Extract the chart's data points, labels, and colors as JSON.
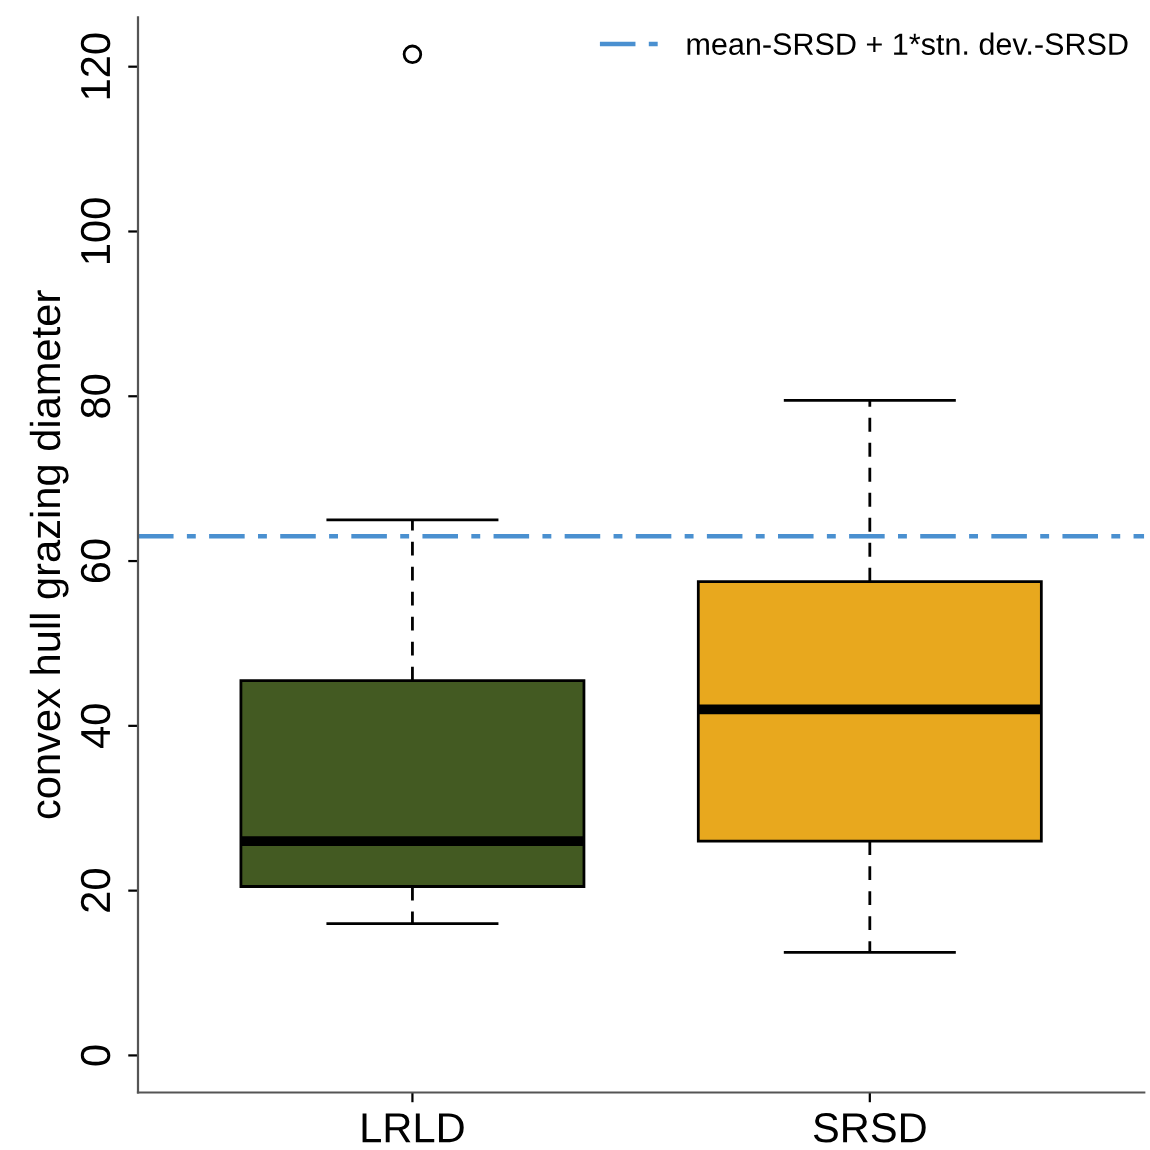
{
  "chart_data": {
    "type": "box",
    "ylabel": "convex hull grazing diameter",
    "categories": [
      "LRLD",
      "SRSD"
    ],
    "series": [
      {
        "colors": [
          "#435a22",
          "#e8a81e"
        ],
        "boxes": [
          {
            "low": 16,
            "q1": 20.5,
            "median": 26,
            "q3": 45.5,
            "high": 65,
            "outliers": [
              121.5
            ]
          },
          {
            "low": 12.5,
            "q1": 26,
            "median": 42,
            "q3": 57.5,
            "high": 79.5
          }
        ]
      }
    ],
    "ylim": [
      -4.5,
      126
    ],
    "yticks": [
      0,
      20,
      40,
      60,
      80,
      100,
      120
    ],
    "ref_lines": [
      {
        "axis": "y",
        "value": 63,
        "label": "mean-SRSD + 1*stn. dev.-SRSD",
        "color": "#4a90d0",
        "line_style": "dashed"
      }
    ],
    "legend": "top right",
    "grid": false
  }
}
